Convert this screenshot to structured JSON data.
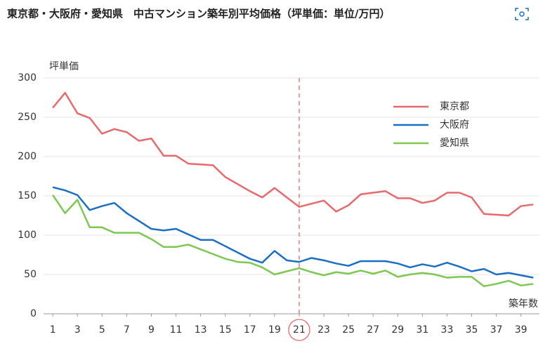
{
  "chart_data": {
    "type": "line",
    "title": "東京都・大阪府・愛知県　中古マンション築年別平均価格（坪単価：単位/万円）",
    "y_label": "坪単価",
    "x_label": "築年数",
    "x": [
      1,
      2,
      3,
      4,
      5,
      6,
      7,
      8,
      9,
      10,
      11,
      12,
      13,
      14,
      15,
      16,
      17,
      18,
      19,
      20,
      21,
      22,
      23,
      24,
      25,
      26,
      27,
      28,
      29,
      30,
      31,
      32,
      33,
      34,
      35,
      36,
      37,
      38,
      39,
      40
    ],
    "series": [
      {
        "name": "東京都",
        "color": "#e8696b",
        "values": [
          262,
          281,
          255,
          249,
          229,
          235,
          231,
          220,
          223,
          201,
          201,
          191,
          190,
          189,
          174,
          165,
          156,
          148,
          160,
          148,
          136,
          140,
          144,
          130,
          138,
          152,
          154,
          156,
          147,
          147,
          141,
          144,
          154,
          154,
          148,
          127,
          126,
          125,
          137,
          139
        ]
      },
      {
        "name": "大阪府",
        "color": "#1a6fc4",
        "values": [
          161,
          157,
          151,
          132,
          137,
          141,
          128,
          118,
          108,
          106,
          108,
          101,
          94,
          94,
          86,
          78,
          70,
          65,
          80,
          68,
          66,
          71,
          68,
          64,
          61,
          67,
          67,
          67,
          64,
          59,
          63,
          60,
          65,
          60,
          54,
          57,
          50,
          52,
          49,
          46
        ]
      },
      {
        "name": "愛知県",
        "color": "#7cc850",
        "values": [
          151,
          128,
          145,
          110,
          110,
          103,
          103,
          103,
          95,
          85,
          85,
          88,
          82,
          76,
          70,
          66,
          65,
          59,
          50,
          54,
          58,
          53,
          49,
          53,
          51,
          55,
          51,
          55,
          47,
          50,
          52,
          50,
          46,
          47,
          47,
          35,
          38,
          42,
          36,
          38
        ]
      }
    ],
    "xlim": [
      0.25,
      40.5
    ],
    "xticks": [
      1,
      3,
      5,
      7,
      9,
      11,
      13,
      15,
      17,
      19,
      21,
      23,
      25,
      27,
      29,
      31,
      33,
      35,
      37,
      39
    ],
    "ylim": [
      0,
      300
    ],
    "yticks": [
      0,
      50,
      100,
      150,
      200,
      250,
      300
    ],
    "grid": true,
    "highlight_x": 21,
    "legend": "upper right"
  }
}
